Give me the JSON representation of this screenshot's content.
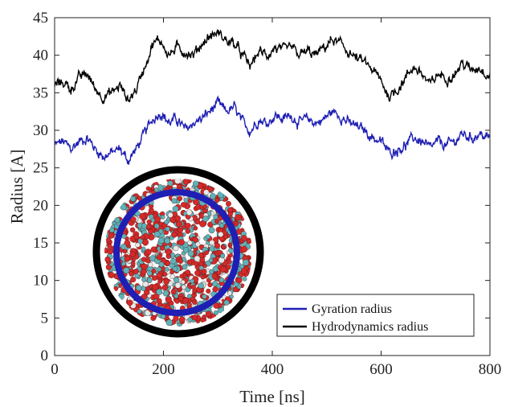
{
  "chart_data": {
    "type": "line",
    "title": "",
    "xlabel": "Time [ns]",
    "ylabel": "Radius [A]",
    "xlim": [
      0,
      800
    ],
    "ylim": [
      0,
      45
    ],
    "xticks": [
      0,
      200,
      400,
      600,
      800
    ],
    "yticks": [
      0,
      5,
      10,
      15,
      20,
      25,
      30,
      35,
      40,
      45
    ],
    "grid": false,
    "legend_position": "bottom-right",
    "series": [
      {
        "name": "Gyration radius",
        "color": "#1f1fb4",
        "x": [
          0,
          15,
          30,
          45,
          60,
          75,
          90,
          105,
          120,
          135,
          150,
          165,
          180,
          195,
          210,
          225,
          240,
          255,
          270,
          285,
          300,
          315,
          330,
          345,
          360,
          375,
          390,
          405,
          420,
          435,
          450,
          465,
          480,
          495,
          510,
          525,
          540,
          555,
          570,
          585,
          600,
          615,
          630,
          645,
          660,
          675,
          690,
          705,
          720,
          735,
          750,
          765,
          780,
          795,
          800
        ],
        "y": [
          28,
          28.5,
          27.5,
          28.5,
          29,
          27.5,
          26.5,
          27,
          27.5,
          26,
          27.5,
          29.5,
          31.5,
          32.5,
          31,
          31.5,
          30,
          31,
          31.5,
          32.5,
          33.5,
          32.5,
          33,
          31,
          30,
          31.5,
          31,
          32,
          31.5,
          32,
          31,
          31.5,
          31,
          31.5,
          32.5,
          32,
          31,
          30.5,
          30,
          29,
          28.5,
          27,
          27.5,
          28,
          29,
          28.5,
          27.5,
          28.5,
          28,
          28.5,
          29.5,
          29,
          29.5,
          29,
          29
        ]
      },
      {
        "name": "Hydrodynamics radius",
        "color": "#000000",
        "x": [
          0,
          15,
          30,
          45,
          60,
          75,
          90,
          105,
          120,
          135,
          150,
          165,
          180,
          195,
          210,
          225,
          240,
          255,
          270,
          285,
          300,
          315,
          330,
          345,
          360,
          375,
          390,
          405,
          420,
          435,
          450,
          465,
          480,
          495,
          510,
          525,
          540,
          555,
          570,
          585,
          600,
          615,
          630,
          645,
          660,
          675,
          690,
          705,
          720,
          735,
          750,
          765,
          780,
          795,
          800
        ],
        "y": [
          36,
          36.5,
          35.5,
          37,
          37.5,
          35.5,
          34.5,
          35,
          36,
          34,
          35.5,
          38.5,
          41.5,
          42,
          40,
          41,
          40.5,
          40,
          41.5,
          42.5,
          43,
          42,
          41.5,
          40,
          38.5,
          40.5,
          40,
          41,
          40.5,
          41,
          40,
          40.5,
          40,
          41,
          42,
          41.5,
          40.5,
          39.5,
          39,
          38,
          36.5,
          34.5,
          35.5,
          37,
          38.5,
          37.5,
          36,
          37.5,
          37,
          37.5,
          39,
          38,
          38.5,
          37.5,
          37.5
        ]
      }
    ]
  },
  "inset": {
    "description_icon": "molecule-cluster-inset",
    "outer_ring_color": "#000000",
    "inner_ring_color": "#1f1fb4",
    "atom_colors": [
      "#d42a2a",
      "#5fb2b8",
      "#e8e8e8"
    ]
  }
}
